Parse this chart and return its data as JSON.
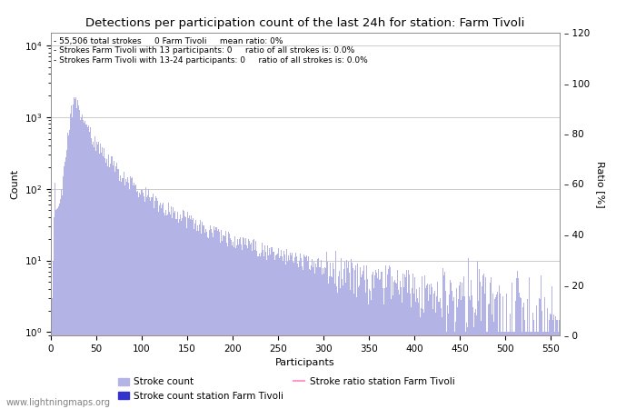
{
  "title": "Detections per participation count of the last 24h for station: Farm Tivoli",
  "xlabel": "Participants",
  "ylabel_left": "Count",
  "ylabel_right": "Ratio [%]",
  "annotation_lines": [
    "55,506 total strokes     0 Farm Tivoli     mean ratio: 0%",
    "Strokes Farm Tivoli with 13 participants: 0     ratio of all strokes is: 0.0%",
    "Strokes Farm Tivoli with 13-24 participants: 0     ratio of all strokes is: 0.0%"
  ],
  "bar_color_main": "#b3b3e6",
  "bar_color_station": "#3333cc",
  "ratio_line_color": "#ff99cc",
  "legend_labels": [
    "Stroke count",
    "Stroke count station Farm Tivoli",
    "Stroke ratio station Farm Tivoli"
  ],
  "watermark": "www.lightningmaps.org",
  "xlim": [
    0,
    560
  ],
  "ylim_right": [
    0,
    120
  ],
  "yticks_right": [
    0,
    20,
    40,
    60,
    80,
    100,
    120
  ],
  "xticks": [
    0,
    50,
    100,
    150,
    200,
    250,
    300,
    350,
    400,
    450,
    500,
    550
  ],
  "max_participants": 560
}
